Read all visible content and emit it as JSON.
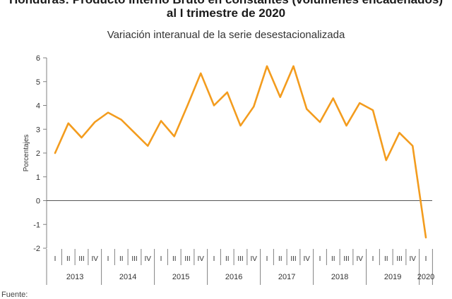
{
  "title_line1": "Honduras: Producto Interno Bruto en constantes (volúmenes encadenados)",
  "title_line2": "al I trimestre de 2020",
  "subtitle": "Variación interanual de la serie desestacionalizada",
  "source_label": "Fuente:",
  "colors": {
    "line": "#F39C1E",
    "axis": "#808080",
    "zero": "#555555"
  },
  "chart_data": {
    "type": "line",
    "title": "Variación interanual de la serie desestacionalizada",
    "xlabel": "",
    "ylabel": "Porcentajes",
    "ylim": [
      -2,
      6
    ],
    "yticks": [
      "6",
      "5",
      "4",
      "3",
      "2",
      "1",
      "0",
      "-1",
      "-2"
    ],
    "grid": false,
    "legend": "none",
    "quarters": [
      "I",
      "II",
      "III",
      "IV"
    ],
    "years": [
      "2013",
      "2014",
      "2015",
      "2016",
      "2017",
      "2018",
      "2019",
      "2020"
    ],
    "x": [
      "2013-I",
      "2013-II",
      "2013-III",
      "2013-IV",
      "2014-I",
      "2014-II",
      "2014-III",
      "2014-IV",
      "2015-I",
      "2015-II",
      "2015-III",
      "2015-IV",
      "2016-I",
      "2016-II",
      "2016-III",
      "2016-IV",
      "2017-I",
      "2017-II",
      "2017-III",
      "2017-IV",
      "2018-I",
      "2018-II",
      "2018-III",
      "2018-IV",
      "2019-I",
      "2019-II",
      "2019-III",
      "2019-IV",
      "2020-I"
    ],
    "series": [
      {
        "values": [
          2.0,
          3.25,
          2.65,
          3.3,
          3.7,
          3.4,
          2.85,
          2.3,
          3.35,
          2.7,
          4.0,
          5.35,
          4.0,
          4.55,
          3.15,
          3.95,
          5.65,
          4.35,
          5.65,
          3.85,
          3.3,
          4.3,
          3.15,
          4.1,
          3.8,
          1.7,
          2.85,
          2.3,
          -1.55
        ]
      }
    ]
  }
}
